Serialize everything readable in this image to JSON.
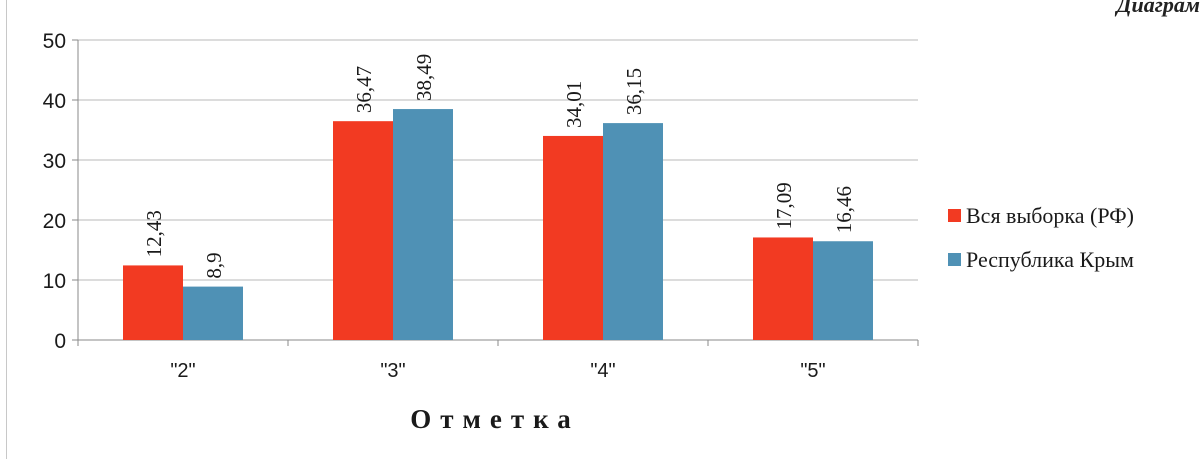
{
  "corner_caption": "Диаграм",
  "chart_data": {
    "type": "bar",
    "title": "",
    "xlabel": "Отметка",
    "ylabel": "",
    "categories": [
      "\"2\"",
      "\"3\"",
      "\"4\"",
      "\"5\""
    ],
    "ylim": [
      0,
      50
    ],
    "yticks": [
      0,
      10,
      20,
      30,
      40,
      50
    ],
    "grid": true,
    "legend_position": "right",
    "series": [
      {
        "name": "Вся выборка (РФ)",
        "values": [
          12.43,
          36.47,
          34.01,
          17.09
        ],
        "labels": [
          "12,43",
          "36,47",
          "34,01",
          "17,09"
        ],
        "color": "#f23a22"
      },
      {
        "name": "Республика Крым",
        "values": [
          8.9,
          38.49,
          36.15,
          16.46
        ],
        "labels": [
          "8,9",
          "38,49",
          "36,15",
          "16,46"
        ],
        "color": "#4f91b5"
      }
    ]
  }
}
